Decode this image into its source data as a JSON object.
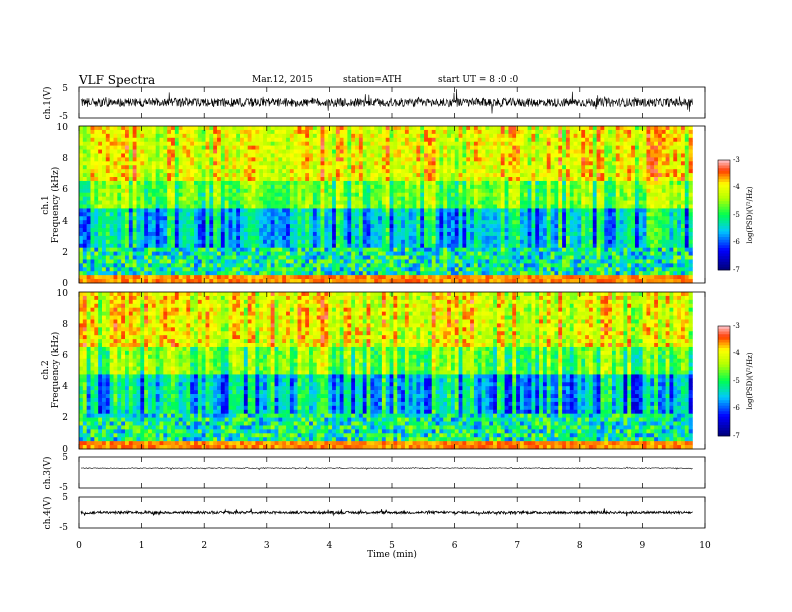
{
  "header": {
    "title": "VLF  Spectra",
    "date": "Mar.12, 2015",
    "station": "station=ATH",
    "start": "start  UT  =   8  :0  :0"
  },
  "chart_data": [
    {
      "type": "line",
      "id": "ch1-waveform",
      "ylabel": "ch.1(V)",
      "ylim": [
        -5,
        5
      ],
      "yticks": [
        "5",
        "-5"
      ],
      "xlim": [
        0,
        10
      ],
      "series": [
        {
          "level": 0,
          "amplitude": 1.4,
          "color": "#000000"
        }
      ]
    },
    {
      "type": "heatmap",
      "id": "ch1-spectrogram",
      "ylabel": "Frequency (kHz)",
      "channel": "ch.1",
      "ylim": [
        0,
        10
      ],
      "yticks": [
        "0",
        "2",
        "4",
        "6",
        "8",
        "10"
      ],
      "xlim": [
        0,
        9.8
      ],
      "colorbar": {
        "label": "log(PSD)(V²/Hz)",
        "range": [
          -7,
          -3
        ],
        "ticks": [
          "-3",
          "-4",
          "-5",
          "-6",
          "-7"
        ]
      }
    },
    {
      "type": "heatmap",
      "id": "ch2-spectrogram",
      "ylabel": "Frequency (kHz)",
      "channel": "ch.2",
      "ylim": [
        0,
        10
      ],
      "yticks": [
        "0",
        "2",
        "4",
        "6",
        "8",
        "10"
      ],
      "xlim": [
        0,
        9.8
      ],
      "colorbar": {
        "label": "log(PSD)(V²/Hz)",
        "range": [
          -7,
          -3
        ],
        "ticks": [
          "-3",
          "-4",
          "-5",
          "-6",
          "-7"
        ]
      }
    },
    {
      "type": "line",
      "id": "ch3-waveform",
      "ylabel": "ch.3(V)",
      "ylim": [
        -5,
        5
      ],
      "yticks": [
        "5",
        "-5"
      ],
      "series": [
        {
          "level": 1.4,
          "amplitude": 0.15,
          "color": "#000000"
        }
      ]
    },
    {
      "type": "line",
      "id": "ch4-waveform",
      "ylabel": "ch.4(V)",
      "ylim": [
        -5,
        5
      ],
      "yticks": [
        "5",
        "-5"
      ],
      "series": [
        {
          "level": 0,
          "amplitude": 0.4,
          "color": "#000000"
        }
      ]
    }
  ],
  "xaxis": {
    "label": "Time  (min)",
    "range": [
      0,
      10
    ],
    "ticks": [
      "0",
      "1",
      "2",
      "3",
      "4",
      "5",
      "6",
      "7",
      "8",
      "9",
      "10"
    ]
  },
  "colors": {
    "low": "#000080",
    "mid": "#00ff00",
    "high": "#ff0000"
  }
}
